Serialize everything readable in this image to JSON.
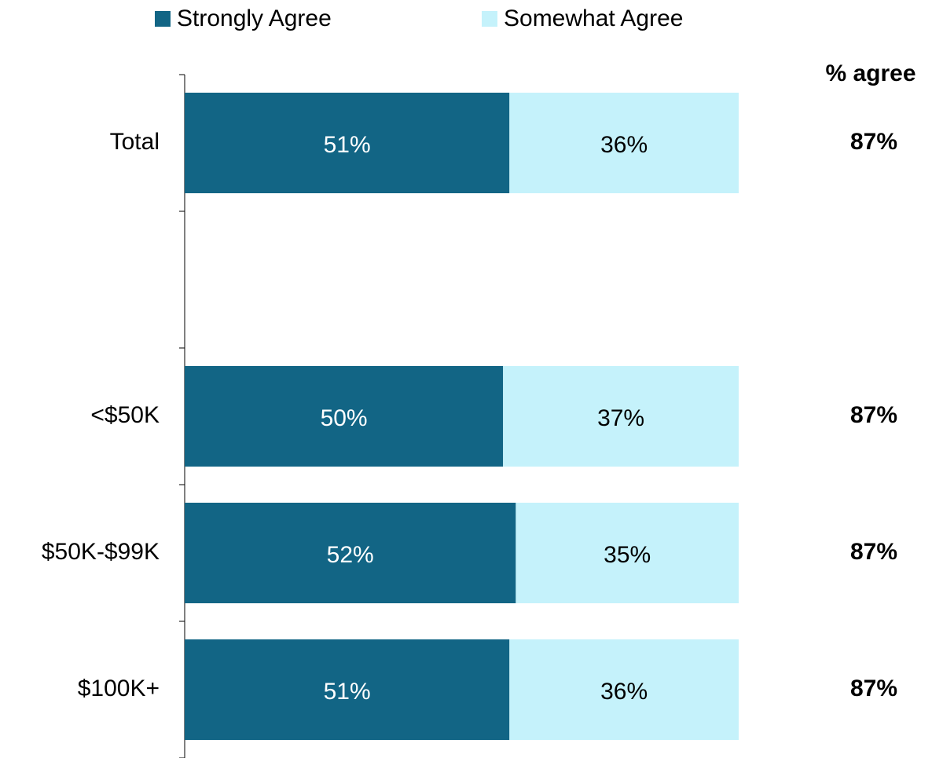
{
  "chart_data": {
    "type": "stacked-bar-horizontal",
    "categories": [
      "Total",
      null,
      "<$50K",
      "$50K-$99K",
      "$100K+"
    ],
    "series": [
      {
        "name": "Strongly Agree",
        "color": "#126585",
        "label_color": "#ffffff",
        "values": [
          51,
          null,
          50,
          52,
          51
        ],
        "value_labels": [
          "51%",
          null,
          "50%",
          "52%",
          "51%"
        ]
      },
      {
        "name": "Somewhat Agree",
        "color": "#c5f2fb",
        "label_color": "#000000",
        "values": [
          36,
          null,
          37,
          35,
          36
        ],
        "value_labels": [
          "36%",
          null,
          "37%",
          "35%",
          "36%"
        ]
      }
    ],
    "totals": {
      "title": "% agree",
      "values": [
        87,
        null,
        87,
        87,
        87
      ],
      "value_labels": [
        "87%",
        null,
        "87%",
        "87%",
        "87%"
      ]
    },
    "legend": "top"
  }
}
